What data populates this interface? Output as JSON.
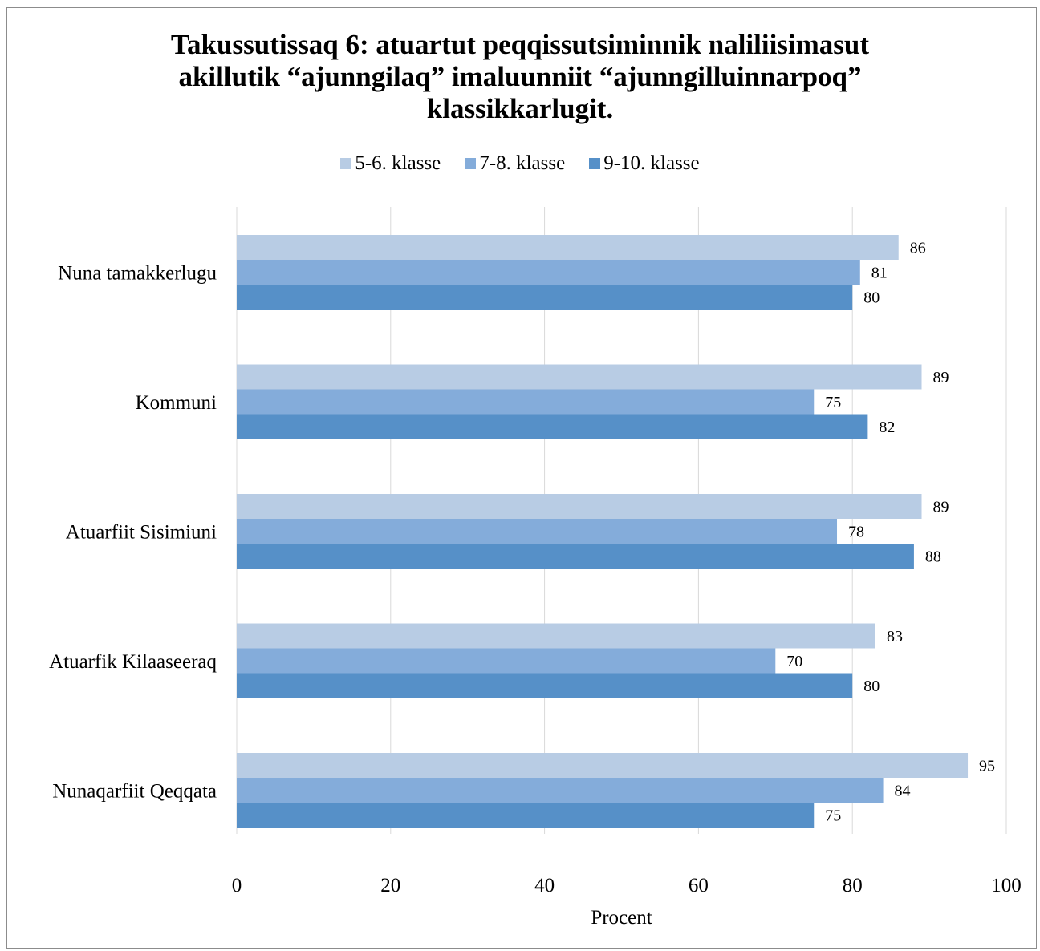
{
  "chart_data": {
    "type": "bar",
    "orientation": "horizontal",
    "title": "Takussutissaq 6: atuartut peqqissutsiminnik naliliisimasut akillutik “ajunngilaq” imaluunniit “ajunngilluinnarpoq” klassikkarlugit.",
    "title_lines": [
      "Takussutissaq 6: atuartut peqqissutsiminnik naliliisimasut",
      "akillutik “ajunngilaq” imaluunniit “ajunngilluinnarpoq”",
      "klassikkarlugit."
    ],
    "categories": [
      "Nuna tamakkerlugu",
      "Kommuni",
      "Atuarfiit Sisimiuni",
      "Atuarfik Kilaaseeraq",
      "Nunaqarfiit Qeqqata"
    ],
    "series": [
      {
        "name": "5-6. klasse",
        "color": "#b8cce4",
        "values": [
          86,
          89,
          89,
          83,
          95
        ]
      },
      {
        "name": "7-8. klasse",
        "color": "#84acda",
        "values": [
          81,
          75,
          78,
          70,
          84
        ]
      },
      {
        "name": "9-10. klasse",
        "color": "#5690c8",
        "values": [
          80,
          82,
          88,
          80,
          75
        ]
      }
    ],
    "xlabel": "Procent",
    "ylabel": "",
    "xlim": [
      0,
      100
    ],
    "xticks": [
      0,
      20,
      40,
      60,
      80,
      100
    ],
    "grid": true,
    "legend_position": "top"
  }
}
